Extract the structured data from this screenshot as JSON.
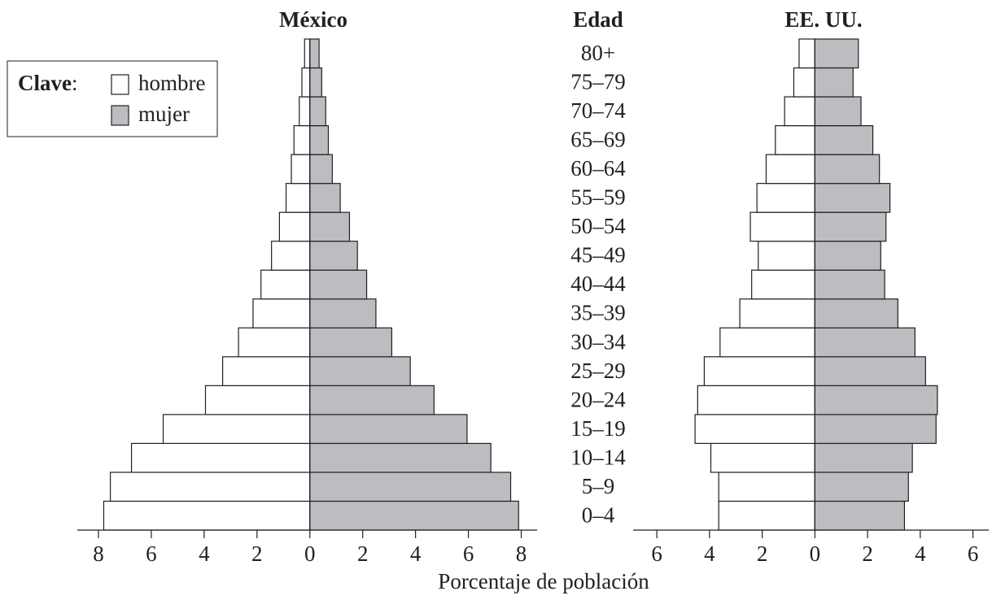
{
  "chart_data": {
    "type": "pyramid",
    "legend_title": "Clave",
    "legend": [
      {
        "name": "hombre",
        "color": "#ffffff"
      },
      {
        "name": "mujer",
        "color": "#bcbdc1"
      }
    ],
    "category_label": "Edad",
    "categories": [
      "0–4",
      "5–9",
      "10–14",
      "15–19",
      "20–24",
      "25–29",
      "30–34",
      "35–39",
      "40–44",
      "45–49",
      "50–54",
      "55–59",
      "60–64",
      "65–69",
      "70–74",
      "75–79",
      "80+"
    ],
    "xlabel": "Porcentaje de población",
    "panels": [
      {
        "title": "México",
        "series": [
          {
            "values": [
              7.8,
              7.55,
              6.75,
              5.55,
              3.95,
              3.3,
              2.7,
              2.15,
              1.85,
              1.45,
              1.15,
              0.9,
              0.7,
              0.6,
              0.4,
              0.3,
              0.2
            ]
          },
          {
            "values": [
              7.9,
              7.6,
              6.85,
              5.95,
              4.7,
              3.8,
              3.1,
              2.5,
              2.15,
              1.8,
              1.5,
              1.15,
              0.85,
              0.7,
              0.6,
              0.45,
              0.35
            ]
          }
        ],
        "xlim": [
          -8.8,
          8.6
        ],
        "xticks": [
          {
            "value": -8,
            "label": "8"
          },
          {
            "value": -6,
            "label": "6"
          },
          {
            "value": -4,
            "label": "4"
          },
          {
            "value": -2,
            "label": "2"
          },
          0,
          2,
          4,
          6,
          8
        ]
      },
      {
        "title": "EE. UU.",
        "series": [
          {
            "values": [
              3.65,
              3.65,
              3.95,
              4.55,
              4.45,
              4.2,
              3.6,
              2.85,
              2.4,
              2.15,
              2.45,
              2.2,
              1.85,
              1.5,
              1.15,
              0.8,
              0.6
            ]
          },
          {
            "values": [
              3.4,
              3.55,
              3.7,
              4.6,
              4.65,
              4.2,
              3.8,
              3.15,
              2.65,
              2.5,
              2.7,
              2.85,
              2.45,
              2.2,
              1.75,
              1.45,
              1.65
            ]
          }
        ],
        "xlim": [
          -6.9,
          6.6
        ],
        "xticks": [
          {
            "value": -6,
            "label": "6"
          },
          {
            "value": -4,
            "label": "4"
          },
          {
            "value": -2,
            "label": "2"
          },
          0,
          2,
          4,
          6
        ]
      }
    ]
  }
}
